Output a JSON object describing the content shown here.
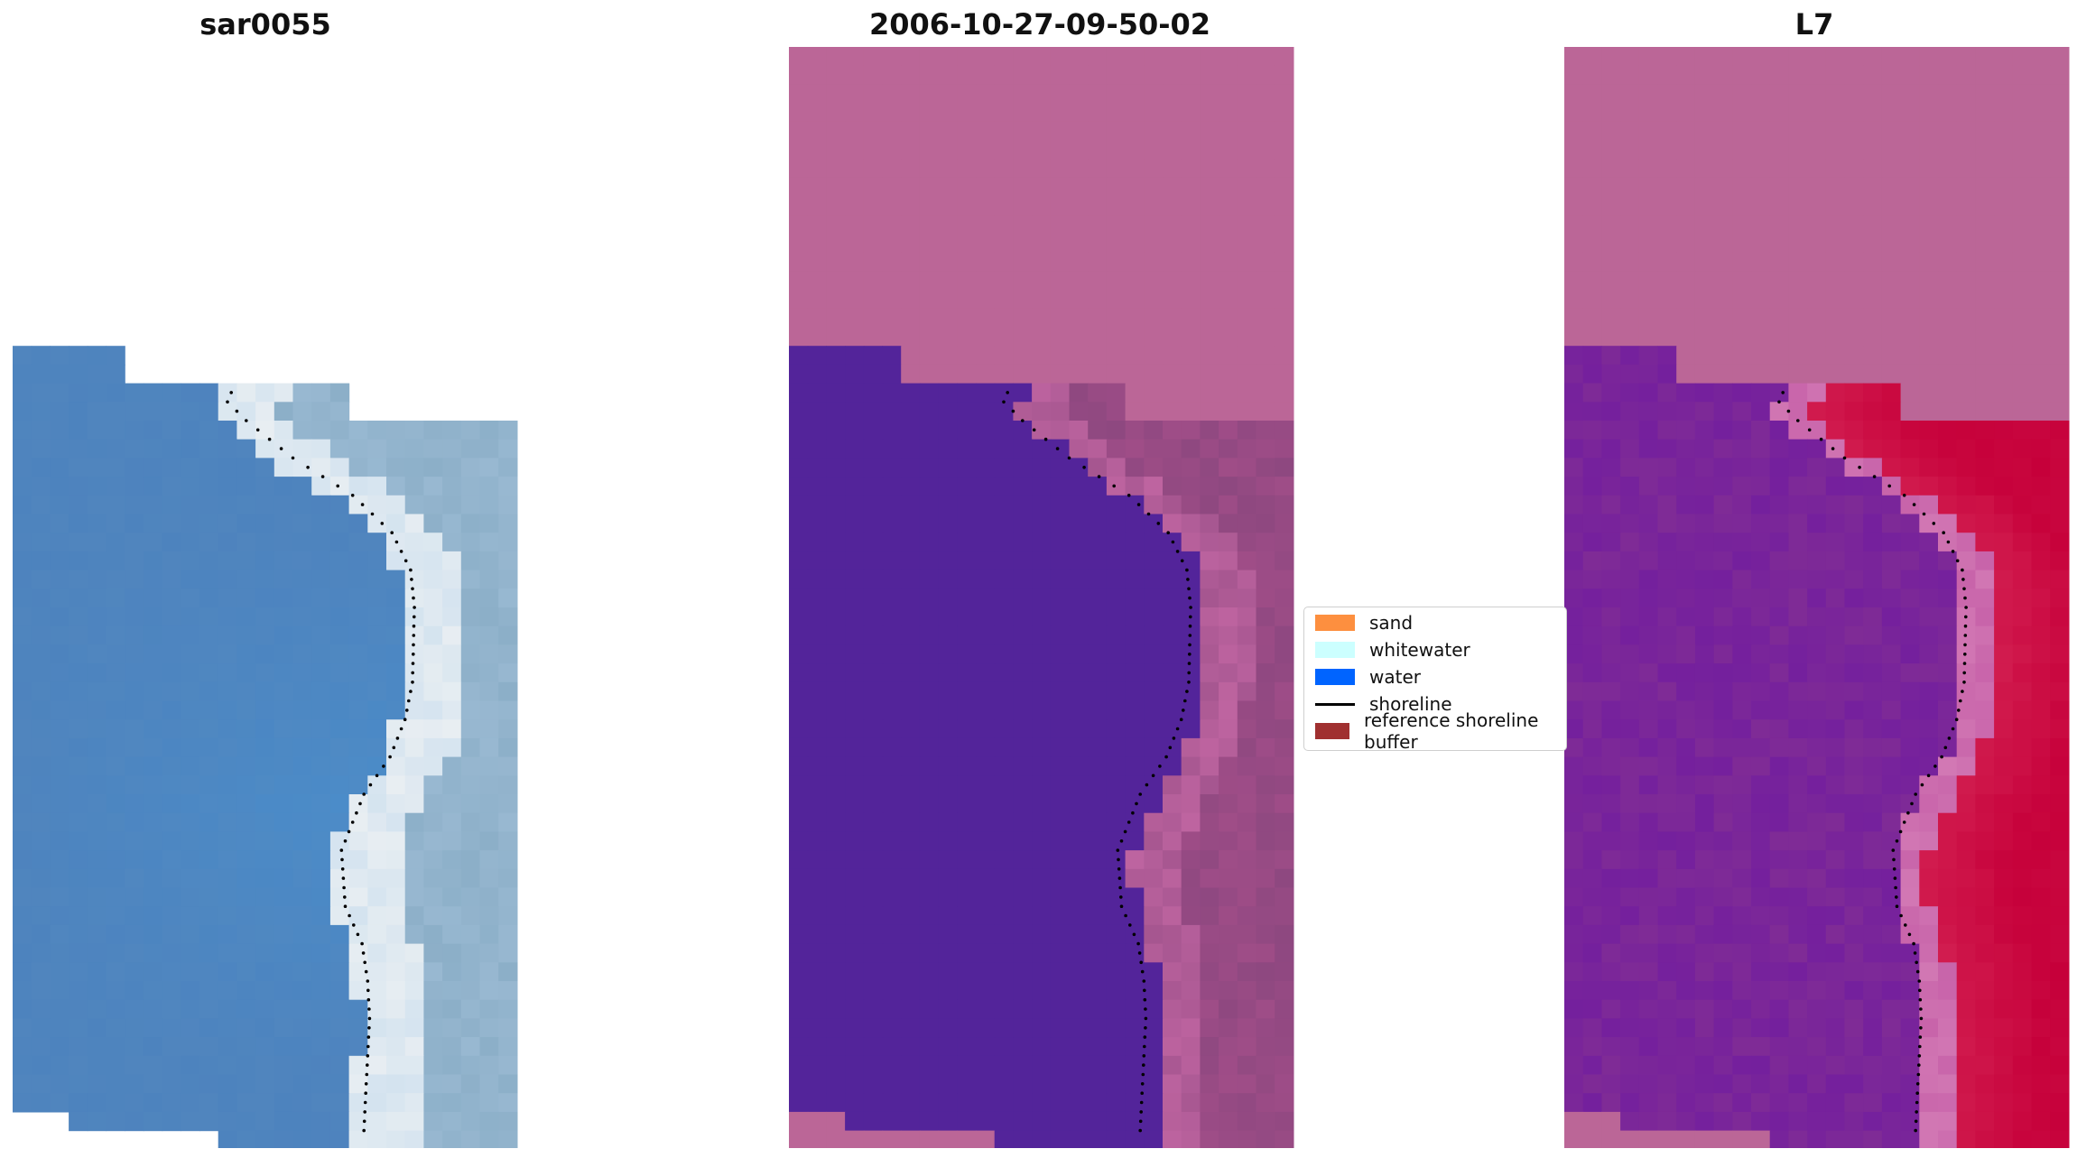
{
  "panels": [
    {
      "title": "sar0055",
      "style": "rgb"
    },
    {
      "title": "2006-10-27-09-50-02",
      "style": "classified"
    },
    {
      "title": "L7",
      "style": "index"
    }
  ],
  "legend": [
    {
      "label": "sand",
      "color": "#fd8f3f",
      "kind": "patch"
    },
    {
      "label": "whitewater",
      "color": "#ccffff",
      "kind": "patch"
    },
    {
      "label": "water",
      "color": "#0064ff",
      "kind": "patch"
    },
    {
      "label": "shoreline",
      "color": "#000000",
      "kind": "line"
    },
    {
      "label": "reference shoreline buffer",
      "color": "#a03030",
      "kind": "patch"
    }
  ],
  "colors": {
    "nodata": "#bb6697",
    "water_class": "#53249a",
    "land_class": "#8e4880",
    "water_index": "#7f2b96",
    "land_index": "#c6003a",
    "rgb_water": "#4d83be",
    "rgb_surf": "#e8eef2"
  }
}
